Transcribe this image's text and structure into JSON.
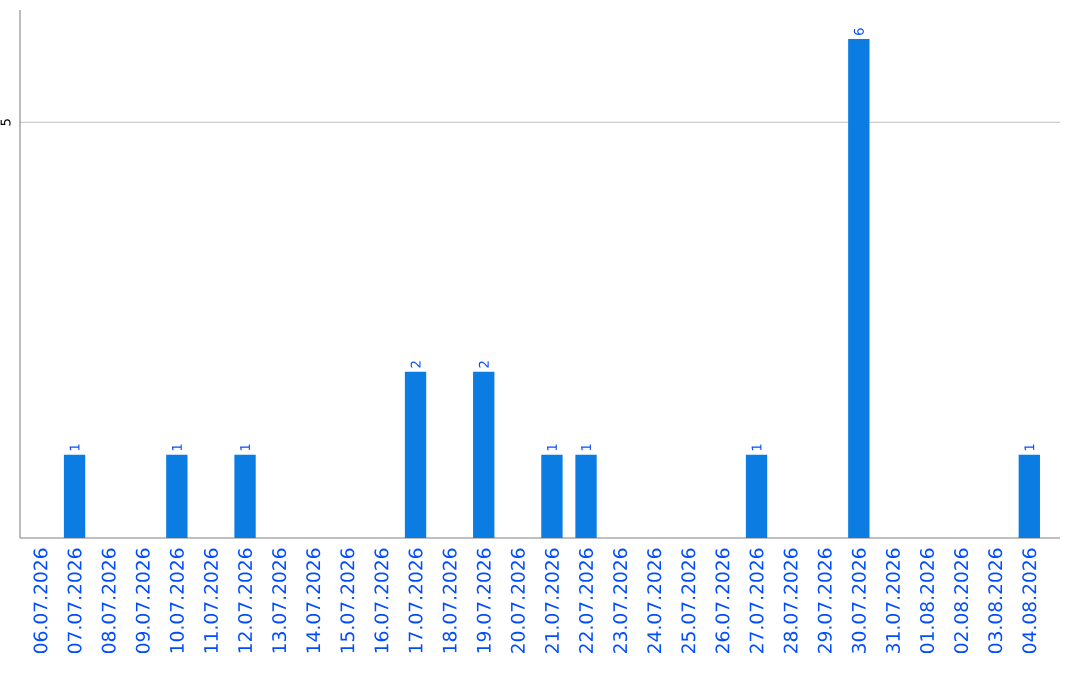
{
  "chart_data": {
    "type": "bar",
    "categories": [
      "06.07.2026",
      "07.07.2026",
      "08.07.2026",
      "09.07.2026",
      "10.07.2026",
      "11.07.2026",
      "12.07.2026",
      "13.07.2026",
      "14.07.2026",
      "15.07.2026",
      "16.07.2026",
      "17.07.2026",
      "18.07.2026",
      "19.07.2026",
      "20.07.2026",
      "21.07.2026",
      "22.07.2026",
      "23.07.2026",
      "24.07.2026",
      "25.07.2026",
      "26.07.2026",
      "27.07.2026",
      "28.07.2026",
      "29.07.2026",
      "30.07.2026",
      "31.07.2026",
      "01.08.2026",
      "02.08.2026",
      "03.08.2026",
      "04.08.2026"
    ],
    "values": [
      null,
      1,
      null,
      null,
      1,
      null,
      1,
      null,
      null,
      null,
      null,
      2,
      null,
      2,
      null,
      1,
      1,
      null,
      null,
      null,
      null,
      1,
      null,
      null,
      6,
      null,
      null,
      null,
      null,
      1
    ],
    "color": "#0a7ce2",
    "ylim": [
      0,
      6.35
    ],
    "yticks": [
      5
    ],
    "grid": "y",
    "data_labels": true
  }
}
